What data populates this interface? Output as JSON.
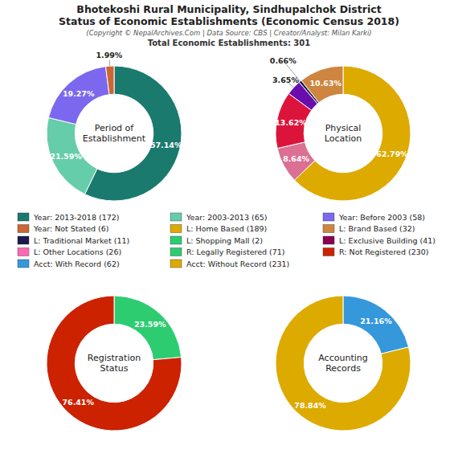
{
  "title": [
    "Bhotekoshi Rural Municipality, Sindhupalchok District",
    "Status of Economic Establishments (Economic Census 2018)"
  ],
  "subtitle": [
    "(Copyright © NepalArchives.Com | Data Source: CBS | Creator/Analyst: Milan Karki)",
    "Total Economic Establishments: 301"
  ],
  "chart_data": [
    {
      "type": "pie",
      "title": "Period of\nEstablishment",
      "values": [
        57.14,
        21.59,
        19.27,
        1.99
      ],
      "value_labels": [
        "57.14%",
        "21.59%",
        "19.27%",
        "1.99%"
      ],
      "colors": [
        "#1a7a6e",
        "#66CDAA",
        "#7B68EE",
        "#CC6633"
      ],
      "data_labels": true
    },
    {
      "type": "pie",
      "title": "Physical\nLocation",
      "values": [
        62.79,
        8.64,
        13.62,
        3.65,
        0.66,
        10.63
      ],
      "value_labels": [
        "62.79%",
        "8.64%",
        "13.62%",
        "3.65%",
        "0.66%",
        "10.63%"
      ],
      "colors": [
        "#DDAA00",
        "#DB7093",
        "#DC143C",
        "#6A0DAD",
        "#1a1a4e",
        "#CD853F"
      ],
      "data_labels": true
    },
    {
      "type": "pie",
      "title": "Registration\nStatus",
      "values": [
        23.59,
        76.41
      ],
      "value_labels": [
        "23.59%",
        "76.41%"
      ],
      "colors": [
        "#2ECC71",
        "#CC2200"
      ],
      "data_labels": true
    },
    {
      "type": "pie",
      "title": "Accounting\nRecords",
      "values": [
        21.16,
        78.84
      ],
      "value_labels": [
        "21.16%",
        "78.84%"
      ],
      "colors": [
        "#3498DB",
        "#DDAA00"
      ],
      "data_labels": true
    }
  ],
  "legend_items": [
    {
      "label": "Year: 2013-2018 (172)",
      "color": "#1a7a6e"
    },
    {
      "label": "Year: Not Stated (6)",
      "color": "#CC6633"
    },
    {
      "label": "L: Traditional Market (11)",
      "color": "#1a1a4e"
    },
    {
      "label": "L: Other Locations (26)",
      "color": "#FF69B4"
    },
    {
      "label": "Acct: With Record (62)",
      "color": "#3498DB"
    },
    {
      "label": "Year: 2003-2013 (65)",
      "color": "#66CDAA"
    },
    {
      "label": "L: Home Based (189)",
      "color": "#DDAA00"
    },
    {
      "label": "L: Shopping Mall (2)",
      "color": "#2ECC71"
    },
    {
      "label": "R: Legally Registered (71)",
      "color": "#2ECC71"
    },
    {
      "label": "Acct: Without Record (231)",
      "color": "#DDAA00"
    },
    {
      "label": "Year: Before 2003 (58)",
      "color": "#7B68EE"
    },
    {
      "label": "L: Brand Based (32)",
      "color": "#CD853F"
    },
    {
      "label": "L: Exclusive Building (41)",
      "color": "#8B0050"
    },
    {
      "label": "R: Not Registered (230)",
      "color": "#CC2200"
    }
  ]
}
